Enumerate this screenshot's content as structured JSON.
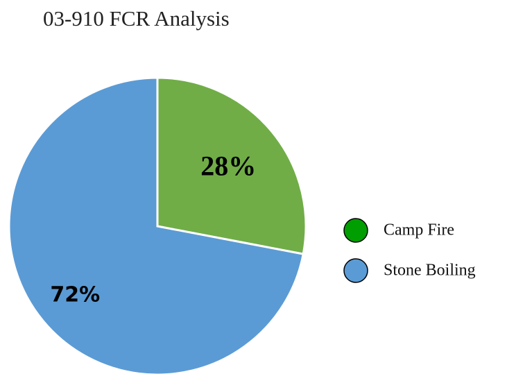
{
  "chart_data": {
    "type": "pie",
    "title": "03-910 FCR Analysis",
    "categories": [
      "Camp Fire",
      "Stone Boiling"
    ],
    "values": [
      28,
      72
    ],
    "value_labels": [
      "28%",
      "72%"
    ],
    "colors": [
      "#70ad47",
      "#5b9bd5"
    ],
    "legend_colors": [
      "#009e00",
      "#5b9bd5"
    ],
    "legend": "right"
  }
}
